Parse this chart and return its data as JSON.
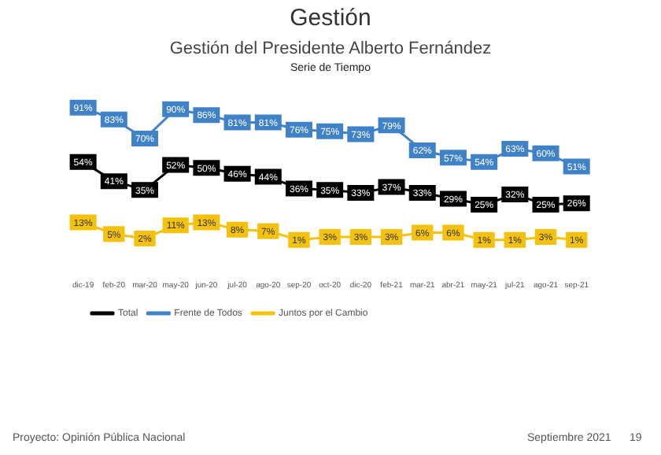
{
  "chart_data": {
    "type": "line",
    "title": "Gestión del Presidente Alberto Fernández",
    "subtitle": "Serie de Tiempo",
    "annotations": [
      "Gestión",
      "Proyecto: Opinión Pública Nacional",
      "Septiembre 2021",
      "19"
    ],
    "categories": [
      "dic-19",
      "feb-20",
      "mar-20",
      "may-20",
      "jun-20",
      "jul-20",
      "ago-20",
      "sep-20",
      "oct-20",
      "dic-20",
      "feb-21",
      "mar-21",
      "abr-21",
      "may-21",
      "jul-21",
      "ago-21",
      "sep-21"
    ],
    "series": [
      {
        "name": "Total",
        "color": "#000000",
        "values": [
          54,
          41,
          35,
          52,
          50,
          46,
          44,
          36,
          35,
          33,
          37,
          33,
          29,
          25,
          32,
          25,
          26
        ],
        "value_labels": [
          "54%",
          "41%",
          "35%",
          "52%",
          "50%",
          "46%",
          "44%",
          "36%",
          "35%",
          "33%",
          "37%",
          "33%",
          "29%",
          "25%",
          "32%",
          "25%",
          "26%"
        ]
      },
      {
        "name": "Frente de Todos",
        "color": "#3f82c8",
        "values": [
          91,
          83,
          70,
          90,
          86,
          81,
          81,
          76,
          75,
          73,
          79,
          62,
          57,
          54,
          63,
          60,
          51
        ],
        "value_labels": [
          "91%",
          "83%",
          "70%",
          "90%",
          "86%",
          "81%",
          "81%",
          "76%",
          "75%",
          "73%",
          "79%",
          "62%",
          "57%",
          "54%",
          "63%",
          "60%",
          "51%"
        ]
      },
      {
        "name": "Juntos por el Cambio",
        "color": "#f4c20d",
        "values": [
          13,
          5,
          2,
          11,
          13,
          8,
          7,
          1,
          3,
          3,
          3,
          6,
          6,
          1,
          1,
          3,
          1
        ],
        "value_labels": [
          "13%",
          "5%",
          "2%",
          "11%",
          "13%",
          "8%",
          "7%",
          "1%",
          "3%",
          "3%",
          "3%",
          "6%",
          "6%",
          "1%",
          "1%",
          "3%",
          "1%"
        ]
      }
    ],
    "legend": "bottom left",
    "line_style": "solid",
    "marker": "square"
  }
}
